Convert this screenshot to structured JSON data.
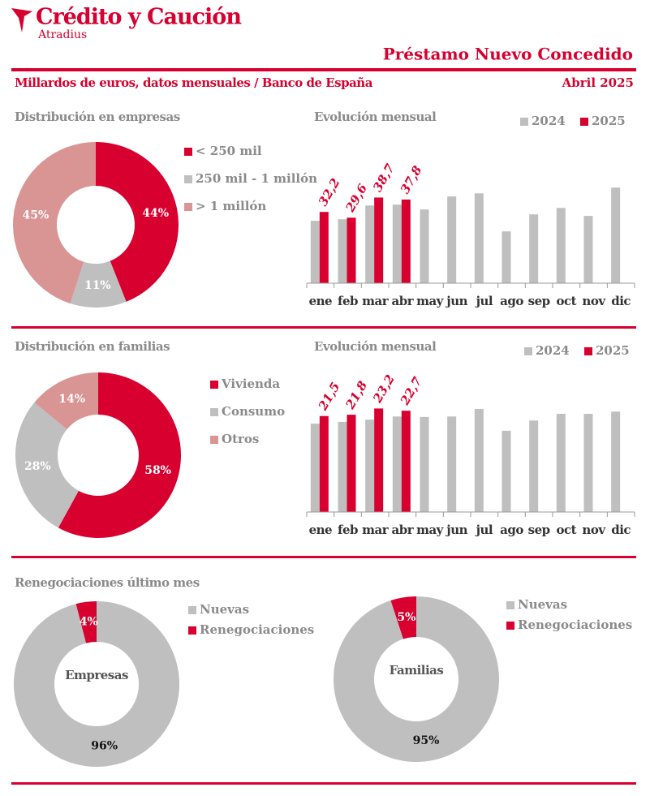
{
  "header": {
    "brand": "Crédito y Caución",
    "brand_sub": "Atradius",
    "title": "Préstamo Nuevo Concedido",
    "subtitle": "Millardos de euros, datos mensuales / Banco de España",
    "date": "Abril 2025",
    "section": "Renegociaciones último mes"
  },
  "chart_data": [
    {
      "type": "pie",
      "title": "Distribución en empresas",
      "categories": [
        "< 250 mil",
        "250 mil - 1 millón",
        "> 1 millón"
      ],
      "values": [
        44,
        11,
        45
      ],
      "value_labels": [
        "44%",
        "11%",
        "45%"
      ],
      "colors": [
        "#d7002e",
        "#bfbfbf",
        "#d99494"
      ]
    },
    {
      "type": "bar",
      "title": "Evolución mensual",
      "categories": [
        "ene",
        "feb",
        "mar",
        "abr",
        "may",
        "jun",
        "jul",
        "ago",
        "sep",
        "oct",
        "nov",
        "dic"
      ],
      "ylim": [
        0,
        55
      ],
      "series": [
        {
          "name": "2024",
          "color": "#bfbfbf",
          "values": [
            28.2,
            28.9,
            35.1,
            35.5,
            33.3,
            39.2,
            40.6,
            23.4,
            31.1,
            34.0,
            30.4,
            43.2
          ]
        },
        {
          "name": "2025",
          "color": "#d7002e",
          "values": [
            32.2,
            29.6,
            38.7,
            37.8,
            null,
            null,
            null,
            null,
            null,
            null,
            null,
            null
          ],
          "value_labels": [
            "32,2",
            "29,6",
            "38,7",
            "37,8",
            null,
            null,
            null,
            null,
            null,
            null,
            null,
            null
          ]
        }
      ]
    },
    {
      "type": "pie",
      "title": "Distribución en familias",
      "categories": [
        "Vivienda",
        "Consumo",
        "Otros"
      ],
      "values": [
        58,
        28,
        14
      ],
      "value_labels": [
        "58%",
        "28%",
        "14%"
      ],
      "colors": [
        "#d7002e",
        "#bfbfbf",
        "#d99494"
      ]
    },
    {
      "type": "bar",
      "title": "Evolución mensual",
      "categories": [
        "ene",
        "feb",
        "mar",
        "abr",
        "may",
        "jun",
        "jul",
        "ago",
        "sep",
        "oct",
        "nov",
        "dic"
      ],
      "ylim": [
        0,
        28
      ],
      "series": [
        {
          "name": "2024",
          "color": "#bfbfbf",
          "values": [
            19.8,
            20.2,
            20.7,
            21.4,
            21.3,
            21.4,
            23.1,
            18.2,
            20.5,
            22.0,
            22.0,
            22.5
          ]
        },
        {
          "name": "2025",
          "color": "#d7002e",
          "values": [
            21.5,
            21.8,
            23.2,
            22.7,
            null,
            null,
            null,
            null,
            null,
            null,
            null,
            null
          ],
          "value_labels": [
            "21,5",
            "21,8",
            "23,2",
            "22,7",
            null,
            null,
            null,
            null,
            null,
            null,
            null,
            null
          ]
        }
      ]
    },
    {
      "type": "pie",
      "center_label": "Empresas",
      "categories": [
        "Nuevas",
        "Renegociaciones"
      ],
      "values": [
        96,
        4
      ],
      "value_labels": [
        "96%",
        "4%"
      ],
      "colors": [
        "#bfbfbf",
        "#d7002e"
      ]
    },
    {
      "type": "pie",
      "center_label": "Familias",
      "categories": [
        "Nuevas",
        "Renegociaciones"
      ],
      "values": [
        95,
        5
      ],
      "value_labels": [
        "95%",
        "5%"
      ],
      "colors": [
        "#bfbfbf",
        "#d7002e"
      ]
    }
  ]
}
